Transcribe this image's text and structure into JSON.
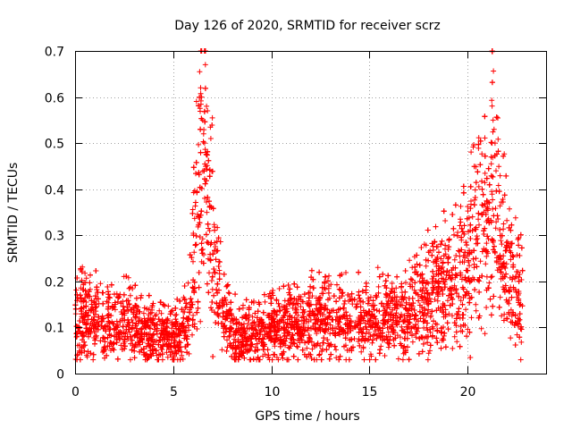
{
  "chart_data": {
    "type": "scatter",
    "title": "Day 126 of 2020, SRMTID for receiver scrz",
    "xlabel": "GPS time / hours",
    "ylabel": "SRMTID / TECUs",
    "xlim": [
      0,
      24
    ],
    "ylim": [
      0,
      0.7
    ],
    "xticks": [
      "0",
      "5",
      "10",
      "15",
      "20"
    ],
    "xtick_values": [
      0,
      5,
      10,
      15,
      20
    ],
    "yticks": [
      "0",
      "0.1",
      "0.2",
      "0.3",
      "0.4",
      "0.5",
      "0.6",
      "0.7"
    ],
    "ytick_values": [
      0,
      0.1,
      0.2,
      0.3,
      0.4,
      0.5,
      0.6,
      0.7
    ],
    "grid": true,
    "marker": "+",
    "color": "#ff0000",
    "series": [
      {
        "name": "SRMTID",
        "profile": [
          [
            0.0,
            0.11
          ],
          [
            0.5,
            0.12
          ],
          [
            1.0,
            0.115
          ],
          [
            2.0,
            0.11
          ],
          [
            3.0,
            0.105
          ],
          [
            4.0,
            0.085
          ],
          [
            4.5,
            0.075
          ],
          [
            5.0,
            0.075
          ],
          [
            5.5,
            0.09
          ],
          [
            5.8,
            0.12
          ],
          [
            6.0,
            0.2
          ],
          [
            6.2,
            0.3
          ],
          [
            6.4,
            0.45
          ],
          [
            6.6,
            0.42
          ],
          [
            6.8,
            0.38
          ],
          [
            7.0,
            0.28
          ],
          [
            7.3,
            0.18
          ],
          [
            7.6,
            0.12
          ],
          [
            8.0,
            0.085
          ],
          [
            9.0,
            0.08
          ],
          [
            10.0,
            0.095
          ],
          [
            11.0,
            0.1
          ],
          [
            12.0,
            0.115
          ],
          [
            13.0,
            0.11
          ],
          [
            14.0,
            0.11
          ],
          [
            15.0,
            0.12
          ],
          [
            16.0,
            0.11
          ],
          [
            16.5,
            0.12
          ],
          [
            17.0,
            0.13
          ],
          [
            17.5,
            0.14
          ],
          [
            18.0,
            0.17
          ],
          [
            19.0,
            0.18
          ],
          [
            19.5,
            0.2
          ],
          [
            20.0,
            0.24
          ],
          [
            20.5,
            0.27
          ],
          [
            21.0,
            0.3
          ],
          [
            21.3,
            0.38
          ],
          [
            21.6,
            0.28
          ],
          [
            22.0,
            0.22
          ],
          [
            22.5,
            0.17
          ],
          [
            22.8,
            0.15
          ]
        ],
        "points_per_hour": 240,
        "spread": 0.35,
        "spikes": [
          {
            "x": 6.35,
            "y": 0.655
          },
          {
            "x": 6.4,
            "y": 0.62
          },
          {
            "x": 6.45,
            "y": 0.6
          },
          {
            "x": 6.5,
            "y": 0.55
          },
          {
            "x": 6.55,
            "y": 0.52
          },
          {
            "x": 6.7,
            "y": 0.58
          },
          {
            "x": 6.75,
            "y": 0.57
          },
          {
            "x": 6.6,
            "y": 0.5
          },
          {
            "x": 6.65,
            "y": 0.48
          },
          {
            "x": 21.3,
            "y": 0.55
          },
          {
            "x": 21.35,
            "y": 0.53
          },
          {
            "x": 21.4,
            "y": 0.5
          },
          {
            "x": 21.25,
            "y": 0.5
          },
          {
            "x": 21.2,
            "y": 0.47
          },
          {
            "x": 21.45,
            "y": 0.44
          }
        ]
      }
    ]
  }
}
